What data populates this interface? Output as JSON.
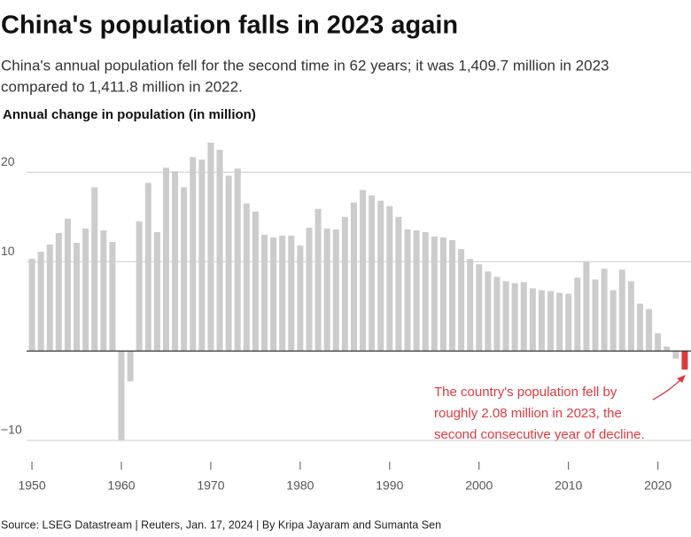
{
  "chart_data": {
    "type": "bar",
    "title": "China's population falls in 2023 again",
    "subtitle": [
      "China's annual population fell for the second time in 62 years; it was 1,409.7 million in 2023",
      "compared to 1,411.8 million in 2022."
    ],
    "y_label": "Annual change in population (in million)",
    "source": "Source: LSEG Datastream | Reuters, Jan. 17, 2024 | By Kripa Jayaram and Sumanta Sen",
    "annotation": [
      "The country's population fell by",
      "roughly 2.08 million in 2023, the",
      "second consecutive year of decline."
    ],
    "x": [
      1950,
      1951,
      1952,
      1953,
      1954,
      1955,
      1956,
      1957,
      1958,
      1959,
      1960,
      1961,
      1962,
      1963,
      1964,
      1965,
      1966,
      1967,
      1968,
      1969,
      1970,
      1971,
      1972,
      1973,
      1974,
      1975,
      1976,
      1977,
      1978,
      1979,
      1980,
      1981,
      1982,
      1983,
      1984,
      1985,
      1986,
      1987,
      1988,
      1989,
      1990,
      1991,
      1992,
      1993,
      1994,
      1995,
      1996,
      1997,
      1998,
      1999,
      2000,
      2001,
      2002,
      2003,
      2004,
      2005,
      2006,
      2007,
      2008,
      2009,
      2010,
      2011,
      2012,
      2013,
      2014,
      2015,
      2016,
      2017,
      2018,
      2019,
      2020,
      2021,
      2022,
      2023
    ],
    "values": [
      10.3,
      11.1,
      11.9,
      13.2,
      14.8,
      12.1,
      13.7,
      18.3,
      13.5,
      12.2,
      -10.0,
      -3.4,
      14.5,
      18.8,
      13.3,
      20.5,
      20.1,
      18.3,
      21.7,
      21.4,
      23.3,
      22.5,
      19.6,
      20.4,
      16.5,
      15.6,
      13.0,
      12.7,
      12.9,
      12.9,
      11.8,
      13.8,
      15.9,
      13.7,
      13.6,
      15.0,
      16.6,
      18.0,
      17.4,
      16.8,
      16.2,
      15.0,
      13.6,
      13.5,
      13.3,
      12.8,
      12.7,
      12.4,
      11.4,
      10.3,
      9.7,
      8.9,
      8.3,
      7.8,
      7.6,
      7.7,
      7.0,
      6.8,
      6.7,
      6.5,
      6.4,
      8.2,
      10.0,
      8.0,
      9.2,
      6.8,
      9.1,
      7.8,
      5.3,
      4.7,
      2.0,
      0.5,
      -0.85,
      -2.08
    ],
    "bar_colors": [
      "#cccccc",
      "#cccccc",
      "#cccccc",
      "#cccccc",
      "#cccccc",
      "#cccccc",
      "#cccccc",
      "#cccccc",
      "#cccccc",
      "#cccccc",
      "#cccccc",
      "#cccccc",
      "#cccccc",
      "#cccccc",
      "#cccccc",
      "#cccccc",
      "#cccccc",
      "#cccccc",
      "#cccccc",
      "#cccccc",
      "#cccccc",
      "#cccccc",
      "#cccccc",
      "#cccccc",
      "#cccccc",
      "#cccccc",
      "#cccccc",
      "#cccccc",
      "#cccccc",
      "#cccccc",
      "#cccccc",
      "#cccccc",
      "#cccccc",
      "#cccccc",
      "#cccccc",
      "#cccccc",
      "#cccccc",
      "#cccccc",
      "#cccccc",
      "#cccccc",
      "#cccccc",
      "#cccccc",
      "#cccccc",
      "#cccccc",
      "#cccccc",
      "#cccccc",
      "#cccccc",
      "#cccccc",
      "#cccccc",
      "#cccccc",
      "#cccccc",
      "#cccccc",
      "#cccccc",
      "#cccccc",
      "#cccccc",
      "#cccccc",
      "#cccccc",
      "#cccccc",
      "#cccccc",
      "#cccccc",
      "#cccccc",
      "#cccccc",
      "#cccccc",
      "#cccccc",
      "#cccccc",
      "#cccccc",
      "#cccccc",
      "#cccccc",
      "#cccccc",
      "#cccccc",
      "#cccccc",
      "#cccccc",
      "#cccccc",
      "#e03a3e"
    ],
    "xlim": [
      1949.4,
      2023.7
    ],
    "xticks": [
      1950,
      1960,
      1970,
      1980,
      1990,
      2000,
      2010,
      2020
    ],
    "ylim": [
      -10.9,
      23.9
    ],
    "yticks": [
      {
        "value": -10,
        "label": "−10"
      },
      10,
      20
    ],
    "grid": true
  }
}
